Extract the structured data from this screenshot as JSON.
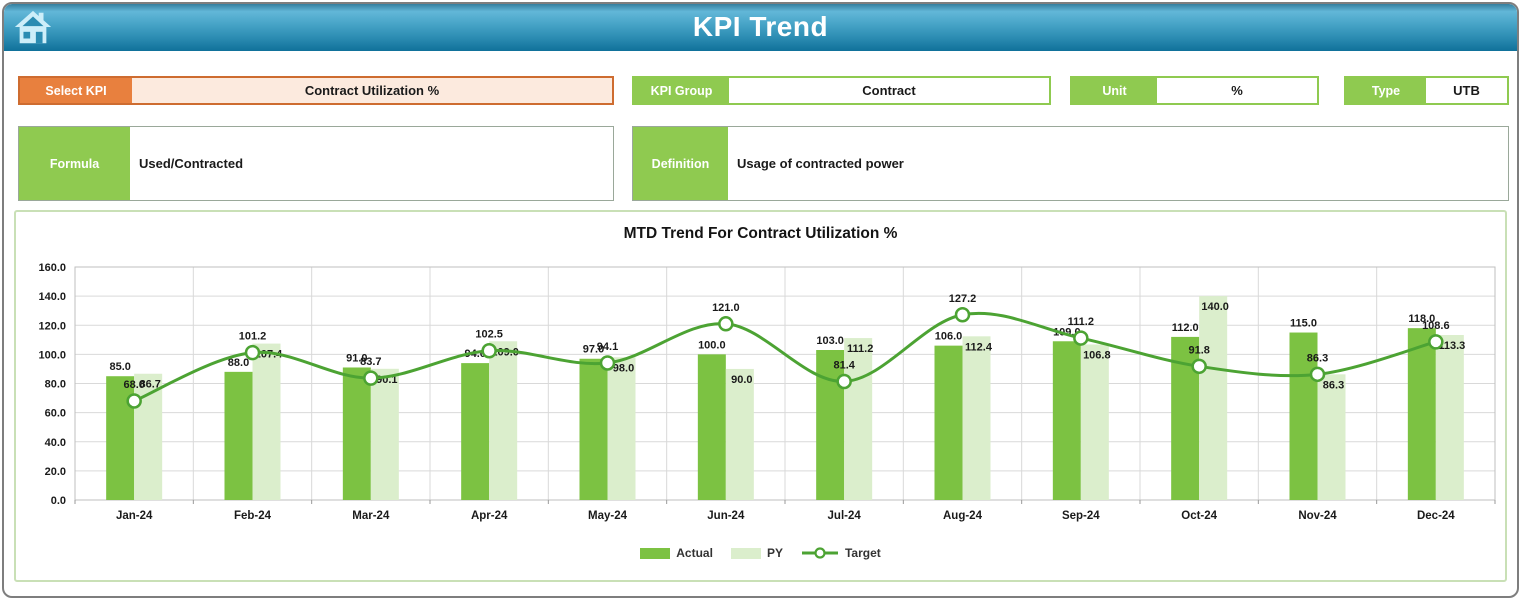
{
  "header": {
    "title": "KPI Trend",
    "home_icon": "home"
  },
  "fields": {
    "select_kpi": {
      "label": "Select KPI",
      "value": "Contract Utilization %"
    },
    "kpi_group": {
      "label": "KPI Group",
      "value": "Contract"
    },
    "unit": {
      "label": "Unit",
      "value": "%"
    },
    "type": {
      "label": "Type",
      "value": "UTB"
    },
    "formula": {
      "label": "Formula",
      "value": "Used/Contracted"
    },
    "definition": {
      "label": "Definition",
      "value": "Usage of contracted power"
    }
  },
  "colors": {
    "header_blue_top": "#62B7D8",
    "header_blue_bottom": "#10719A",
    "accent_orange": "#E8803E",
    "accent_orange_border": "#CE6C30",
    "peach_fill": "#FCEADE",
    "accent_green": "#8FCA50",
    "actual_bar": "#7CC242",
    "py_bar": "#DBEECC",
    "target_line": "#4CA333",
    "gridline": "#D9D9D9",
    "chart_border": "#C9E0B6"
  },
  "chart_data": {
    "type": "bar",
    "subtype": "combo-bar-line",
    "title": "MTD Trend For Contract Utilization %",
    "categories": [
      "Jan-24",
      "Feb-24",
      "Mar-24",
      "Apr-24",
      "May-24",
      "Jun-24",
      "Jul-24",
      "Aug-24",
      "Sep-24",
      "Oct-24",
      "Nov-24",
      "Dec-24"
    ],
    "series": [
      {
        "name": "Actual",
        "chart_type": "bar",
        "color": "#7CC242",
        "values": [
          85.0,
          88.0,
          91.0,
          94.0,
          97.0,
          100.0,
          103.0,
          106.0,
          109.0,
          112.0,
          115.0,
          118.0
        ]
      },
      {
        "name": "PY",
        "chart_type": "bar",
        "color": "#DBEECC",
        "values": [
          86.7,
          107.4,
          90.1,
          109.0,
          98.0,
          90.0,
          111.2,
          112.4,
          106.8,
          140.0,
          86.3,
          113.3
        ]
      },
      {
        "name": "Target",
        "chart_type": "line",
        "color": "#4CA333",
        "marker": "open-circle",
        "values": [
          68.0,
          101.2,
          83.7,
          102.5,
          94.1,
          121.0,
          81.4,
          127.2,
          111.2,
          91.8,
          86.3,
          108.6
        ]
      }
    ],
    "xlabel": "",
    "ylabel": "",
    "ylim": [
      0,
      160
    ],
    "ytick_step": 20,
    "ytick_format": "one-decimal",
    "grid": true,
    "data_labels": true,
    "legend_position": "bottom"
  }
}
